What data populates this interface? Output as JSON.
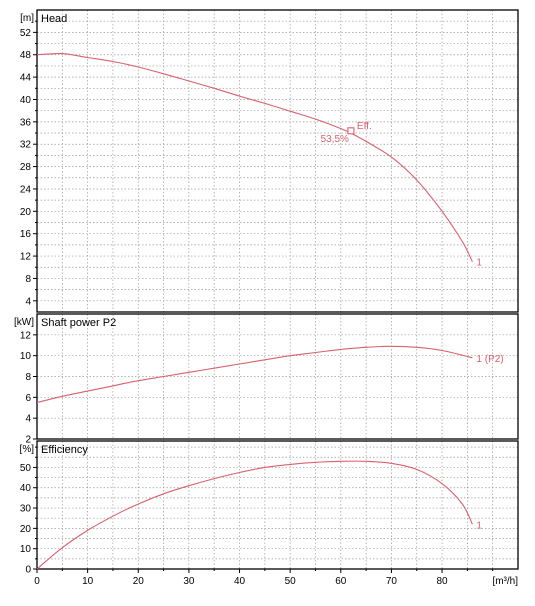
{
  "chart_data": {
    "type": "line",
    "colors": {
      "curve": "#d9606e",
      "grid": "#9a9a9a",
      "frame": "#000000"
    },
    "x_axis": {
      "unit": "[m³/h]",
      "range": [
        0,
        95
      ],
      "ticks": [
        0,
        10,
        20,
        30,
        40,
        50,
        60,
        70,
        80
      ],
      "grid_step": 5
    },
    "panels": [
      {
        "id": "head",
        "title": "Head",
        "unit": "[m]",
        "range": [
          2,
          56
        ],
        "ticks": [
          4,
          8,
          12,
          16,
          20,
          24,
          28,
          32,
          36,
          40,
          44,
          48,
          52
        ],
        "grid_step": 2,
        "series": [
          {
            "label": "1",
            "points": [
              [
                0,
                48
              ],
              [
                5,
                48.2
              ],
              [
                10,
                47.5
              ],
              [
                15,
                46.8
              ],
              [
                20,
                45.8
              ],
              [
                25,
                44.6
              ],
              [
                30,
                43.3
              ],
              [
                35,
                42
              ],
              [
                40,
                40.6
              ],
              [
                45,
                39.3
              ],
              [
                50,
                37.9
              ],
              [
                55,
                36.5
              ],
              [
                60,
                34.8
              ],
              [
                62,
                34
              ],
              [
                65,
                32.5
              ],
              [
                70,
                29.7
              ],
              [
                75,
                25.6
              ],
              [
                80,
                20
              ],
              [
                84,
                14.6
              ],
              [
                86,
                11
              ]
            ]
          }
        ],
        "marker": {
          "x": 62,
          "y": 34.4,
          "label": "Eff.",
          "value": "53,5%"
        }
      },
      {
        "id": "power",
        "title": "Shaft power P2",
        "unit": "[kW]",
        "range": [
          2,
          14
        ],
        "ticks": [
          2,
          4,
          6,
          8,
          10,
          12
        ],
        "grid_step": 2,
        "series": [
          {
            "label": "1 (P2)",
            "points": [
              [
                0,
                5.5
              ],
              [
                5,
                6.1
              ],
              [
                10,
                6.6
              ],
              [
                15,
                7.1
              ],
              [
                20,
                7.6
              ],
              [
                25,
                8
              ],
              [
                30,
                8.4
              ],
              [
                35,
                8.8
              ],
              [
                40,
                9.2
              ],
              [
                45,
                9.6
              ],
              [
                50,
                10
              ],
              [
                55,
                10.3
              ],
              [
                60,
                10.6
              ],
              [
                65,
                10.8
              ],
              [
                70,
                10.9
              ],
              [
                75,
                10.8
              ],
              [
                80,
                10.5
              ],
              [
                86,
                9.8
              ]
            ]
          }
        ]
      },
      {
        "id": "efficiency",
        "title": "Efficiency",
        "unit": "[%]",
        "range": [
          0,
          63
        ],
        "ticks": [
          0,
          10,
          20,
          30,
          40,
          50
        ],
        "grid_step": 5,
        "series": [
          {
            "label": "1",
            "points": [
              [
                0,
                0
              ],
              [
                5,
                10.5
              ],
              [
                10,
                19
              ],
              [
                15,
                26
              ],
              [
                20,
                32
              ],
              [
                25,
                37
              ],
              [
                30,
                41
              ],
              [
                35,
                44.5
              ],
              [
                40,
                47.5
              ],
              [
                45,
                50
              ],
              [
                50,
                51.5
              ],
              [
                55,
                52.5
              ],
              [
                60,
                53
              ],
              [
                65,
                53
              ],
              [
                70,
                52
              ],
              [
                75,
                49
              ],
              [
                80,
                42
              ],
              [
                84,
                32
              ],
              [
                86,
                22
              ]
            ]
          }
        ]
      }
    ]
  }
}
